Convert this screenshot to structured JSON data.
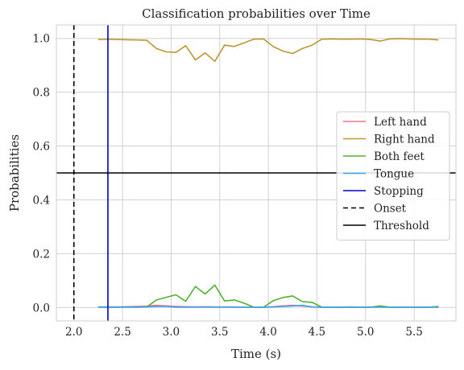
{
  "chart_data": {
    "type": "line",
    "title": "Classification probabilities over Time",
    "xlabel": "Time (s)",
    "ylabel": "Probabilities",
    "xlim": [
      1.82,
      5.93
    ],
    "ylim": [
      -0.05,
      1.05
    ],
    "xticks": [
      2.0,
      2.5,
      3.0,
      3.5,
      4.0,
      4.5,
      5.0,
      5.5
    ],
    "xtick_labels": [
      "2.0",
      "2.5",
      "3.0",
      "3.5",
      "4.0",
      "4.5",
      "5.0",
      "5.5"
    ],
    "yticks": [
      0.0,
      0.2,
      0.4,
      0.6,
      0.8,
      1.0
    ],
    "ytick_labels": [
      "0.0",
      "0.2",
      "0.4",
      "0.6",
      "0.8",
      "1.0"
    ],
    "grid": true,
    "legend_position": "center-right",
    "x": [
      2.25,
      2.35,
      2.45,
      2.55,
      2.65,
      2.75,
      2.85,
      2.95,
      3.05,
      3.15,
      3.25,
      3.35,
      3.45,
      3.55,
      3.65,
      3.75,
      3.85,
      3.95,
      4.05,
      4.15,
      4.25,
      4.35,
      4.45,
      4.55,
      4.65,
      4.75,
      4.85,
      4.95,
      5.05,
      5.15,
      5.25,
      5.35,
      5.45,
      5.55,
      5.65,
      5.75
    ],
    "series": [
      {
        "name": "Left hand",
        "color": "#f77189",
        "values": [
          0.002,
          0.002,
          0.002,
          0.003,
          0.004,
          0.005,
          0.008,
          0.006,
          0.004,
          0.003,
          0.002,
          0.003,
          0.002,
          0.002,
          0.002,
          0.001,
          0.001,
          0.001,
          0.003,
          0.006,
          0.008,
          0.006,
          0.002,
          0.001,
          0.001,
          0.001,
          0.002,
          0.001,
          0.002,
          0.002,
          0.001,
          0.001,
          0.001,
          0.001,
          0.001,
          0.002
        ]
      },
      {
        "name": "Right hand",
        "color": "#bb9832",
        "values": [
          0.996,
          0.997,
          0.996,
          0.995,
          0.994,
          0.993,
          0.962,
          0.95,
          0.948,
          0.973,
          0.92,
          0.946,
          0.915,
          0.975,
          0.97,
          0.983,
          0.997,
          0.998,
          0.97,
          0.953,
          0.944,
          0.962,
          0.975,
          0.997,
          0.998,
          0.997,
          0.997,
          0.998,
          0.996,
          0.99,
          0.998,
          0.999,
          0.998,
          0.997,
          0.997,
          0.994
        ]
      },
      {
        "name": "Both feet",
        "color": "#50b131",
        "values": [
          0.001,
          0.001,
          0.001,
          0.002,
          0.001,
          0.002,
          0.028,
          0.038,
          0.047,
          0.023,
          0.078,
          0.05,
          0.083,
          0.024,
          0.028,
          0.016,
          0.001,
          0.001,
          0.025,
          0.037,
          0.043,
          0.022,
          0.019,
          0.001,
          0.001,
          0.001,
          0.001,
          0.001,
          0.001,
          0.006,
          0.001,
          0.001,
          0.001,
          0.001,
          0.001,
          0.001
        ]
      },
      {
        "name": "Tongue",
        "color": "#3ba3ec",
        "values": [
          0.001,
          0.001,
          0.001,
          0.001,
          0.001,
          0.002,
          0.004,
          0.004,
          0.001,
          0.001,
          0.001,
          0.001,
          0.001,
          0.001,
          0.001,
          0.001,
          0.001,
          0.001,
          0.002,
          0.004,
          0.006,
          0.008,
          0.002,
          0.001,
          0.001,
          0.001,
          0.001,
          0.001,
          0.001,
          0.001,
          0.001,
          0.001,
          0.001,
          0.001,
          0.001,
          0.004
        ]
      }
    ],
    "reference_lines": [
      {
        "name": "Stopping",
        "orientation": "vertical",
        "value": 2.35,
        "color": "#0000cc",
        "style": "solid"
      },
      {
        "name": "Onset",
        "orientation": "vertical",
        "value": 2.0,
        "color": "#000000",
        "style": "dashed"
      },
      {
        "name": "Threshold",
        "orientation": "horizontal",
        "value": 0.5,
        "color": "#000000",
        "style": "solid"
      }
    ]
  }
}
